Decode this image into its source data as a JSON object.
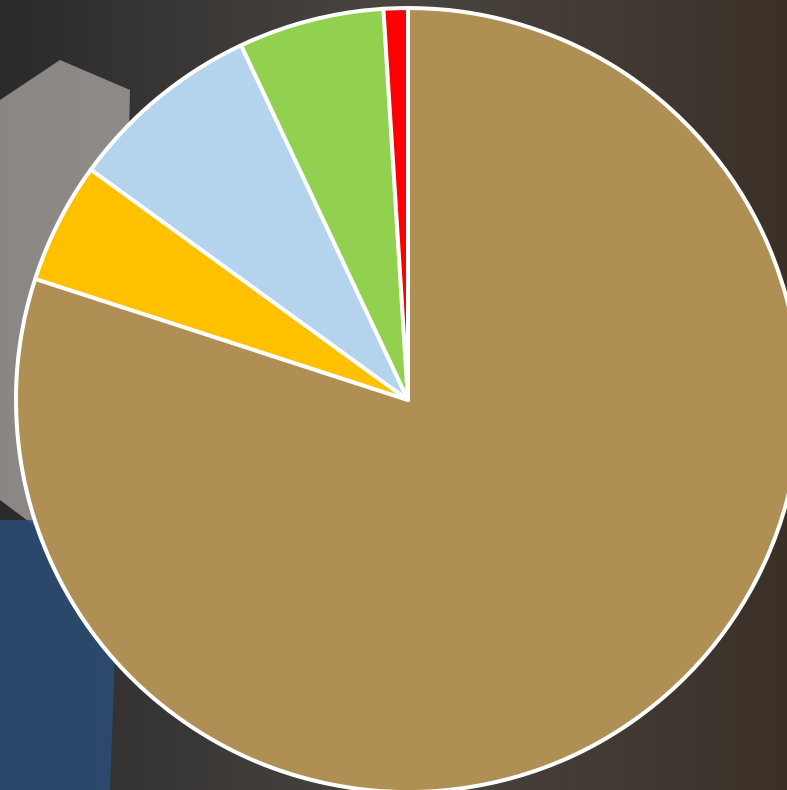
{
  "chart_data": {
    "type": "pie",
    "values": [
      80,
      5,
      8,
      6,
      1
    ],
    "colors": [
      "#b08f55",
      "#ffc000",
      "#b4d3ec",
      "#92d050",
      "#ff0000"
    ]
  }
}
